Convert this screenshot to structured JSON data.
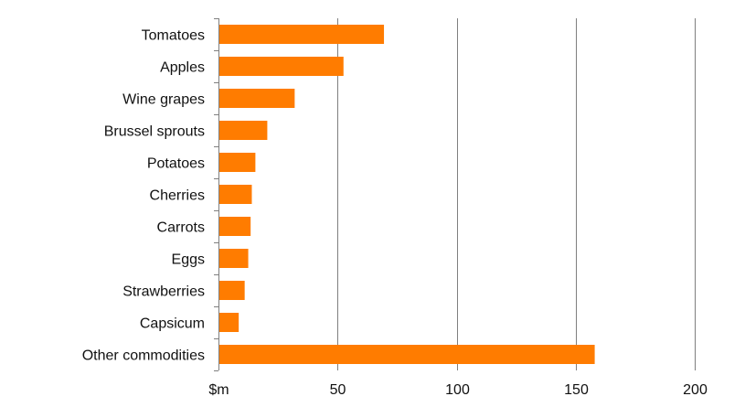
{
  "chart_data": {
    "type": "bar",
    "orientation": "horizontal",
    "categories": [
      "Tomatoes",
      "Apples",
      "Wine grapes",
      "Brussel sprouts",
      "Potatoes",
      "Cherries",
      "Carrots",
      "Eggs",
      "Strawberries",
      "Capsicum",
      "Other commodities"
    ],
    "values": [
      69.5,
      52.5,
      32,
      20.5,
      15.5,
      14,
      13.5,
      12.5,
      11,
      8.5,
      158
    ],
    "xticks": [
      "$m",
      "50",
      "100",
      "150",
      "200"
    ],
    "xlim": [
      0,
      200
    ],
    "grid": true,
    "legend": "none",
    "bar_color": "#FF7C00"
  }
}
